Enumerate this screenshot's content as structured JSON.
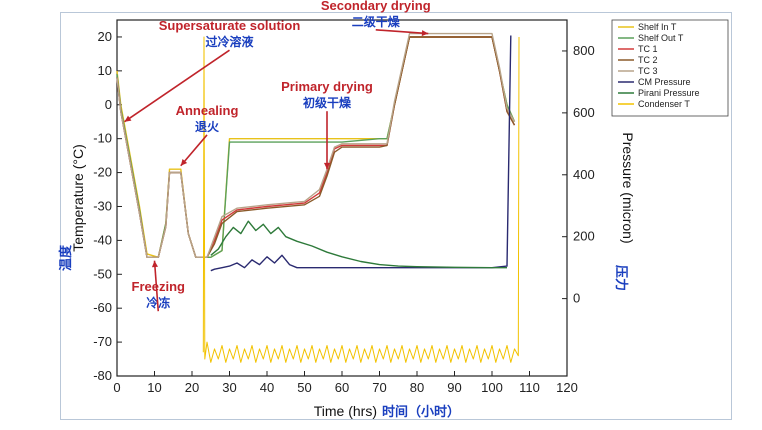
{
  "chart_data": {
    "type": "line",
    "xlabel": "Time (hrs)",
    "xlabel_cn": "时间（小时）",
    "ylabel_left": "Temperature (°C)",
    "ylabel_left_cn": "温度",
    "ylabel_right": "Pressure (micron)",
    "ylabel_right_cn": "压力",
    "xlim": [
      0,
      120
    ],
    "ylim_left": [
      -80,
      25
    ],
    "ylim_right": [
      -250,
      900
    ],
    "x_ticks": [
      0,
      10,
      20,
      30,
      40,
      50,
      60,
      70,
      80,
      90,
      100,
      110,
      120
    ],
    "y_left_ticks": [
      -80,
      -70,
      -60,
      -50,
      -40,
      -30,
      -20,
      -10,
      0,
      10,
      20
    ],
    "y_right_ticks": [
      0,
      200,
      400,
      600,
      800
    ],
    "legend_position": "top-right",
    "series": [
      {
        "name": "Shelf In T",
        "color": "#e8c21a",
        "points": [
          [
            0,
            10
          ],
          [
            1,
            0
          ],
          [
            3,
            -12
          ],
          [
            6,
            -30
          ],
          [
            8,
            -44
          ],
          [
            11,
            -45
          ],
          [
            13,
            -35
          ],
          [
            14,
            -19
          ],
          [
            17,
            -19
          ],
          [
            19,
            -38
          ],
          [
            21,
            -45
          ],
          [
            24,
            -45
          ],
          [
            25,
            -45
          ],
          [
            28,
            -43
          ],
          [
            30,
            -10
          ],
          [
            40,
            -10
          ],
          [
            50,
            -10
          ],
          [
            60,
            -10
          ],
          [
            70,
            -10
          ],
          [
            72,
            -10
          ],
          [
            76,
            10
          ],
          [
            78,
            20
          ],
          [
            100,
            20
          ],
          [
            104,
            0
          ],
          [
            106,
            -5
          ]
        ]
      },
      {
        "name": "Shelf Out T",
        "color": "#5aa05a",
        "points": [
          [
            0,
            9
          ],
          [
            1,
            -1
          ],
          [
            3,
            -13
          ],
          [
            6,
            -31
          ],
          [
            8,
            -45
          ],
          [
            11,
            -45
          ],
          [
            13,
            -35
          ],
          [
            14,
            -20
          ],
          [
            17,
            -20
          ],
          [
            19,
            -38
          ],
          [
            21,
            -45
          ],
          [
            24,
            -45
          ],
          [
            25,
            -45
          ],
          [
            28,
            -43
          ],
          [
            30,
            -11
          ],
          [
            40,
            -11
          ],
          [
            50,
            -11
          ],
          [
            60,
            -11
          ],
          [
            70,
            -10
          ],
          [
            72,
            -10
          ],
          [
            76,
            10
          ],
          [
            78,
            20
          ],
          [
            100,
            20
          ],
          [
            104,
            0
          ],
          [
            106,
            -5
          ]
        ]
      },
      {
        "name": "TC 1",
        "color": "#d23a3a",
        "points": [
          [
            0,
            8
          ],
          [
            1,
            -2
          ],
          [
            3,
            -14
          ],
          [
            6,
            -32
          ],
          [
            8,
            -45
          ],
          [
            11,
            -45
          ],
          [
            13,
            -36
          ],
          [
            14,
            -20
          ],
          [
            17,
            -20
          ],
          [
            19,
            -38
          ],
          [
            21,
            -45
          ],
          [
            24,
            -45
          ],
          [
            26,
            -40
          ],
          [
            28,
            -34
          ],
          [
            32,
            -31
          ],
          [
            40,
            -30
          ],
          [
            50,
            -29
          ],
          [
            54,
            -26
          ],
          [
            56,
            -20
          ],
          [
            58,
            -13
          ],
          [
            60,
            -12
          ],
          [
            70,
            -12
          ],
          [
            72,
            -12
          ],
          [
            74,
            0
          ],
          [
            76,
            10
          ],
          [
            78,
            20
          ],
          [
            100,
            20
          ],
          [
            102,
            10
          ],
          [
            104,
            -2
          ],
          [
            106,
            -6
          ]
        ]
      },
      {
        "name": "TC 2",
        "color": "#8a5a2a",
        "points": [
          [
            0,
            8
          ],
          [
            1,
            -2
          ],
          [
            3,
            -14
          ],
          [
            6,
            -32
          ],
          [
            8,
            -45
          ],
          [
            11,
            -45
          ],
          [
            13,
            -36
          ],
          [
            14,
            -20
          ],
          [
            17,
            -20
          ],
          [
            19,
            -38
          ],
          [
            21,
            -45
          ],
          [
            24,
            -45
          ],
          [
            26,
            -41
          ],
          [
            28,
            -35
          ],
          [
            32,
            -31.5
          ],
          [
            40,
            -30.5
          ],
          [
            50,
            -29.5
          ],
          [
            54,
            -27
          ],
          [
            56,
            -21
          ],
          [
            58,
            -14
          ],
          [
            60,
            -12.5
          ],
          [
            70,
            -12.5
          ],
          [
            72,
            -12
          ],
          [
            74,
            0
          ],
          [
            76,
            10
          ],
          [
            78,
            20
          ],
          [
            100,
            20
          ],
          [
            102,
            10
          ],
          [
            104,
            -2
          ],
          [
            106,
            -6
          ]
        ]
      },
      {
        "name": "TC 3",
        "color": "#b8a48a",
        "points": [
          [
            0,
            8
          ],
          [
            1,
            -2
          ],
          [
            3,
            -14
          ],
          [
            6,
            -32
          ],
          [
            8,
            -45
          ],
          [
            11,
            -45
          ],
          [
            13,
            -36
          ],
          [
            14,
            -20
          ],
          [
            17,
            -20
          ],
          [
            19,
            -38
          ],
          [
            21,
            -45
          ],
          [
            24,
            -45
          ],
          [
            26,
            -39
          ],
          [
            28,
            -33
          ],
          [
            32,
            -30.5
          ],
          [
            40,
            -29.5
          ],
          [
            50,
            -28.5
          ],
          [
            54,
            -25
          ],
          [
            56,
            -19
          ],
          [
            58,
            -12.5
          ],
          [
            60,
            -11.5
          ],
          [
            70,
            -11.5
          ],
          [
            72,
            -11.5
          ],
          [
            74,
            1
          ],
          [
            76,
            11
          ],
          [
            78,
            21
          ],
          [
            100,
            21
          ],
          [
            102,
            11
          ],
          [
            104,
            -1
          ],
          [
            106,
            -5
          ]
        ]
      },
      {
        "name": "CM Pressure",
        "color": "#2a2a70",
        "points": [
          [
            25,
            90
          ],
          [
            26,
            95
          ],
          [
            28,
            100
          ],
          [
            30,
            105
          ],
          [
            32,
            115
          ],
          [
            34,
            100
          ],
          [
            36,
            125
          ],
          [
            38,
            110
          ],
          [
            40,
            135
          ],
          [
            42,
            115
          ],
          [
            44,
            140
          ],
          [
            46,
            110
          ],
          [
            48,
            100
          ],
          [
            50,
            100
          ],
          [
            60,
            100
          ],
          [
            70,
            100
          ],
          [
            80,
            100
          ],
          [
            90,
            100
          ],
          [
            100,
            100
          ],
          [
            104,
            105
          ],
          [
            105,
            850
          ]
        ]
      },
      {
        "name": "Pirani Pressure",
        "color": "#2e7a3a",
        "points": [
          [
            25,
            140
          ],
          [
            27,
            160
          ],
          [
            29,
            200
          ],
          [
            31,
            230
          ],
          [
            33,
            210
          ],
          [
            35,
            250
          ],
          [
            37,
            220
          ],
          [
            39,
            240
          ],
          [
            41,
            210
          ],
          [
            43,
            230
          ],
          [
            45,
            200
          ],
          [
            48,
            185
          ],
          [
            52,
            170
          ],
          [
            56,
            150
          ],
          [
            60,
            135
          ],
          [
            65,
            120
          ],
          [
            70,
            110
          ],
          [
            75,
            105
          ],
          [
            80,
            103
          ],
          [
            90,
            101
          ],
          [
            100,
            100
          ],
          [
            104,
            100
          ]
        ]
      },
      {
        "name": "Condenser T",
        "color": "#f2c200",
        "points": [
          [
            23,
            -73
          ],
          [
            23.2,
            20
          ],
          [
            23.4,
            -75
          ],
          [
            24,
            -70
          ],
          [
            25,
            -76
          ],
          [
            26,
            -72
          ],
          [
            27,
            -75
          ],
          [
            28,
            -71
          ],
          [
            29,
            -76
          ],
          [
            30,
            -72
          ],
          [
            31,
            -75
          ],
          [
            32,
            -71
          ],
          [
            33,
            -76
          ],
          [
            34,
            -72
          ],
          [
            35,
            -75
          ],
          [
            36,
            -71
          ],
          [
            37,
            -76
          ],
          [
            38,
            -72
          ],
          [
            39,
            -75
          ],
          [
            40,
            -71
          ],
          [
            41,
            -76
          ],
          [
            42,
            -72
          ],
          [
            43,
            -75
          ],
          [
            44,
            -71
          ],
          [
            45,
            -76
          ],
          [
            46,
            -72
          ],
          [
            47,
            -75
          ],
          [
            48,
            -71
          ],
          [
            49,
            -76
          ],
          [
            50,
            -72
          ],
          [
            51,
            -75
          ],
          [
            52,
            -71
          ],
          [
            53,
            -76
          ],
          [
            54,
            -72
          ],
          [
            55,
            -75
          ],
          [
            56,
            -71
          ],
          [
            57,
            -76
          ],
          [
            58,
            -72
          ],
          [
            59,
            -75
          ],
          [
            60,
            -71
          ],
          [
            61,
            -76
          ],
          [
            62,
            -72
          ],
          [
            63,
            -75
          ],
          [
            64,
            -71
          ],
          [
            65,
            -76
          ],
          [
            66,
            -72
          ],
          [
            67,
            -75
          ],
          [
            68,
            -71
          ],
          [
            69,
            -76
          ],
          [
            70,
            -72
          ],
          [
            71,
            -75
          ],
          [
            72,
            -71
          ],
          [
            73,
            -76
          ],
          [
            74,
            -72
          ],
          [
            75,
            -75
          ],
          [
            76,
            -71
          ],
          [
            77,
            -76
          ],
          [
            78,
            -72
          ],
          [
            79,
            -75
          ],
          [
            80,
            -71
          ],
          [
            81,
            -76
          ],
          [
            82,
            -72
          ],
          [
            83,
            -75
          ],
          [
            84,
            -71
          ],
          [
            85,
            -76
          ],
          [
            86,
            -72
          ],
          [
            87,
            -75
          ],
          [
            88,
            -71
          ],
          [
            89,
            -76
          ],
          [
            90,
            -72
          ],
          [
            91,
            -75
          ],
          [
            92,
            -71
          ],
          [
            93,
            -76
          ],
          [
            94,
            -72
          ],
          [
            95,
            -75
          ],
          [
            96,
            -71
          ],
          [
            97,
            -76
          ],
          [
            98,
            -72
          ],
          [
            99,
            -75
          ],
          [
            100,
            -71
          ],
          [
            101,
            -76
          ],
          [
            102,
            -72
          ],
          [
            103,
            -75
          ],
          [
            104,
            -71
          ],
          [
            105,
            -76
          ],
          [
            106,
            -72
          ],
          [
            107,
            -74
          ],
          [
            107.2,
            20
          ]
        ]
      }
    ],
    "annotations": [
      {
        "text": "Supersaturate solution",
        "cn": "过冷溶液",
        "x": 30,
        "y": 22,
        "ax": 2,
        "ay": -5
      },
      {
        "text": "Annealing",
        "cn": "退火",
        "x": 24,
        "y": -3,
        "ax": 17,
        "ay": -18
      },
      {
        "text": "Freezing",
        "cn": "冷冻",
        "x": 11,
        "y": -55,
        "ax": 10,
        "ay": -46
      },
      {
        "text": "Primary drying",
        "cn": "初级干燥",
        "x": 56,
        "y": 4,
        "ax": 56,
        "ay": -19
      },
      {
        "text": "Secondary drying",
        "cn": "二级干燥",
        "x": 69,
        "y": 28,
        "ax": 83,
        "ay": 21
      }
    ]
  }
}
